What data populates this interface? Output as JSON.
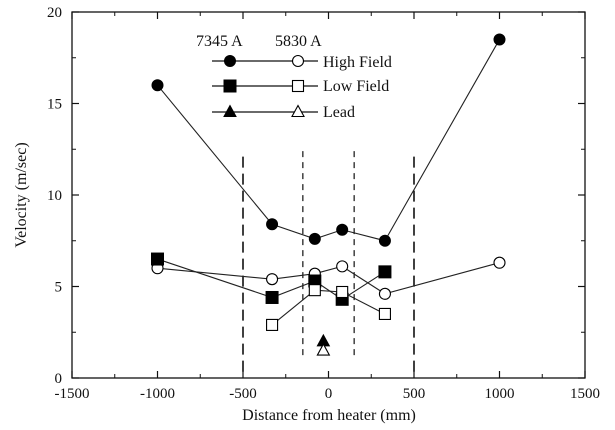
{
  "chart_data": {
    "type": "scatter",
    "xlabel": "Distance from heater (mm)",
    "ylabel": "Velocity (m/sec)",
    "xlim": [
      -1500,
      1500
    ],
    "ylim": [
      0,
      20
    ],
    "xticks": [
      -1500,
      -1000,
      -500,
      0,
      500,
      1000,
      1500
    ],
    "yticks": [
      0,
      5,
      10,
      15,
      20
    ],
    "legend": {
      "placement": "top-left",
      "header_left": "7345 A",
      "header_right": "5830 A",
      "labels": [
        "High Field",
        "Low Field",
        "Lead"
      ]
    },
    "reference_lines": {
      "long_dashed_x": [
        -500,
        500
      ],
      "short_dashed_x": [
        -150,
        150
      ]
    },
    "series": [
      {
        "group": "High Field",
        "wavelength": "7345 A",
        "marker": "filled-circle",
        "connected": true,
        "x": [
          -1000,
          -330,
          -80,
          80,
          330,
          1000
        ],
        "y": [
          16.0,
          8.4,
          7.6,
          8.1,
          7.5,
          18.5
        ]
      },
      {
        "group": "High Field",
        "wavelength": "5830 A",
        "marker": "open-circle",
        "connected": true,
        "x": [
          -1000,
          -330,
          -80,
          80,
          330,
          1000
        ],
        "y": [
          6.0,
          5.4,
          5.7,
          6.1,
          4.6,
          6.3
        ]
      },
      {
        "group": "Low Field",
        "wavelength": "7345 A",
        "marker": "filled-square",
        "connected": true,
        "x": [
          -1000,
          -330,
          -80,
          80,
          330
        ],
        "y": [
          6.5,
          4.4,
          5.3,
          4.3,
          5.8
        ]
      },
      {
        "group": "Low Field",
        "wavelength": "5830 A",
        "marker": "open-square",
        "connected": true,
        "x": [
          -330,
          -80,
          80,
          330
        ],
        "y": [
          2.9,
          4.8,
          4.7,
          3.5
        ]
      },
      {
        "group": "Lead",
        "wavelength": "7345 A",
        "marker": "filled-triangle",
        "connected": false,
        "x": [
          -30
        ],
        "y": [
          2.0
        ]
      },
      {
        "group": "Lead",
        "wavelength": "5830 A",
        "marker": "open-triangle",
        "connected": false,
        "x": [
          -30
        ],
        "y": [
          1.5
        ]
      }
    ]
  }
}
